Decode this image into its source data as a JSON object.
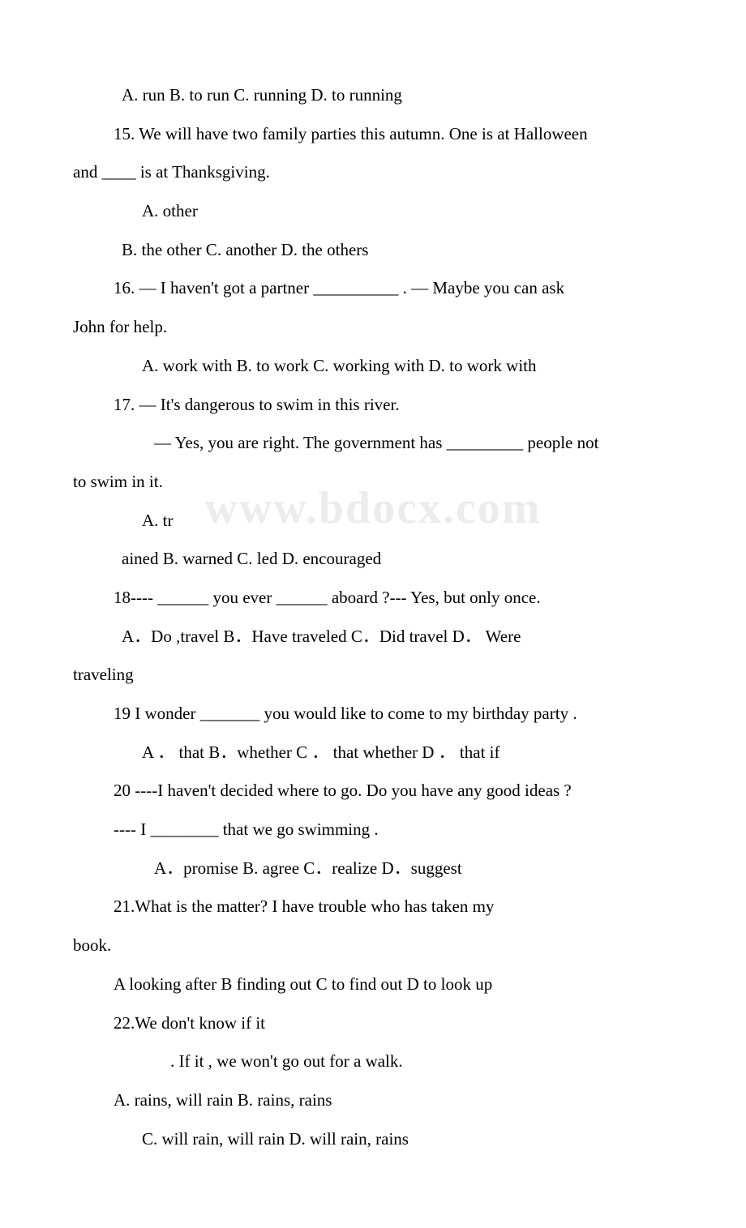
{
  "watermark": "www.bdocx.com",
  "lines": [
    {
      "text": "A. run     B. to run     C. running    D. to running",
      "indent": "indent1"
    },
    {
      "text": "15. We will have two family parties this autumn. One is at Halloween",
      "indent": "indent4"
    },
    {
      "text": "and ____ is at Thanksgiving.",
      "indent": ""
    },
    {
      "text": "A. other",
      "indent": "indent2"
    },
    {
      "text": "B. the other C. another    D. the others",
      "indent": "indent1"
    },
    {
      "text": "16. — I haven't got a partner __________   .   — Maybe you can ask",
      "indent": "indent4"
    },
    {
      "text": "John for help.",
      "indent": ""
    },
    {
      "text": "A. work with      B. to work  C. working with D. to work with",
      "indent": "indent2"
    },
    {
      "text": "17. — It's dangerous to swim in this river.",
      "indent": "indent4"
    },
    {
      "text": "— Yes, you are right. The government has _________ people not",
      "indent": "indent3"
    },
    {
      "text": "to swim in it.",
      "indent": ""
    },
    {
      "text": "A. tr",
      "indent": "indent2"
    },
    {
      "text": "ained      B. warned    C. led       D. encouraged",
      "indent": "indent1"
    },
    {
      "text": "18---- ______ you ever ______ aboard ?--- Yes, but only once.",
      "indent": "indent4"
    },
    {
      "text": "A．Do ,travel    B．Have traveled    C．Did travel   D． Were",
      "indent": "indent1"
    },
    {
      "text": "traveling",
      "indent": ""
    },
    {
      "text": "19  I wonder _______ you would like to come to my birthday party .",
      "indent": "indent4"
    },
    {
      "text": "A ． that      B．whether  C ． that whether   D ． that if",
      "indent": "indent2"
    },
    {
      "text": "20 ----I haven't decided  where to go.  Do you have any good ideas ?",
      "indent": "indent4"
    },
    {
      "text": " ---- I ________ that we go swimming .",
      "indent": "indent4"
    },
    {
      "text": "A．promise     B. agree     C．realize      D．suggest",
      "indent": "indent3"
    },
    {
      "text": "21.What is the matter?  I have trouble            who has taken my",
      "indent": "indent4"
    },
    {
      "text": "book.",
      "indent": ""
    },
    {
      "text": "A looking after   B finding out  C to find out  D to look up",
      "indent": "indent4"
    },
    {
      "text": "22.We don't know if it",
      "indent": "indent4"
    },
    {
      "text": ".  If it              , we won't go out for a walk.",
      "indent": "indent5"
    },
    {
      "text": "A. rains, will rain    B. rains, rains",
      "indent": "indent4"
    },
    {
      "text": "C. will rain, will rain   D. will rain, rains",
      "indent": "indent2"
    }
  ]
}
